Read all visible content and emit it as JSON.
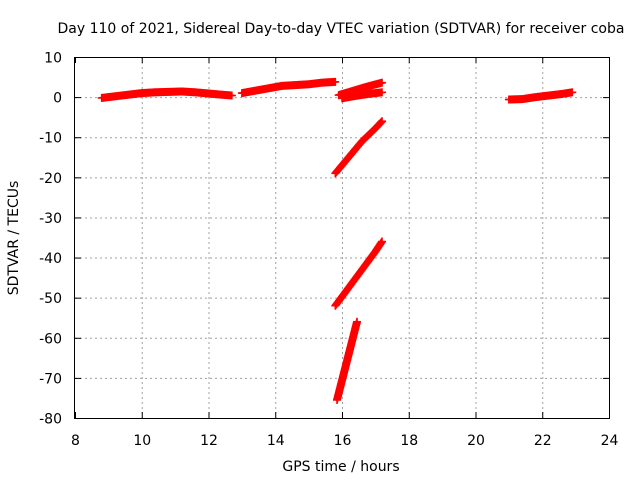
{
  "chart_data": {
    "type": "scatter",
    "title": "Day 110 of 2021, Sidereal Day-to-day VTEC variation (SDTVAR) for receiver coba",
    "xlabel": "GPS time / hours",
    "ylabel": "SDTVAR / TECUs",
    "xlim": [
      8,
      24
    ],
    "ylim": [
      -80,
      10
    ],
    "xticks": [
      "8",
      "10",
      "12",
      "14",
      "16",
      "18",
      "20",
      "22",
      "24"
    ],
    "yticks": [
      "10",
      "0",
      "-10",
      "-20",
      "-30",
      "-40",
      "-50",
      "-60",
      "-70",
      "-80"
    ],
    "grid": true,
    "marker": "plus",
    "color": "#ff0000",
    "series": [
      {
        "segments": [
          {
            "x": [
              8.8,
              9.2,
              9.6,
              10.0,
              10.4,
              10.8,
              11.2,
              11.6,
              12.0,
              12.4,
              12.7
            ],
            "y": [
              -0.2,
              0.2,
              0.6,
              1.0,
              1.2,
              1.3,
              1.4,
              1.2,
              0.9,
              0.6,
              0.4
            ]
          },
          {
            "x": [
              13.0,
              13.4,
              13.8,
              14.2,
              14.6,
              15.0,
              15.4,
              15.8
            ],
            "y": [
              1.0,
              1.6,
              2.2,
              2.8,
              3.0,
              3.2,
              3.6,
              3.8
            ]
          },
          {
            "x": [
              15.9,
              16.3,
              16.7,
              17.2
            ],
            "y": [
              0.5,
              1.5,
              2.5,
              3.6
            ]
          },
          {
            "x": [
              16.0,
              16.4,
              16.8,
              17.2
            ],
            "y": [
              -0.3,
              0.3,
              0.8,
              1.2
            ]
          },
          {
            "x": [
              15.8,
              16.2,
              16.6,
              17.0,
              17.2
            ],
            "y": [
              -19.0,
              -15.0,
              -11.0,
              -7.8,
              -6.0
            ]
          },
          {
            "x": [
              15.8,
              16.2,
              16.6,
              17.0,
              17.2
            ],
            "y": [
              -52.0,
              -47.5,
              -43.0,
              -38.5,
              -36.0
            ]
          },
          {
            "x": [
              15.85,
              16.05,
              16.25,
              16.45
            ],
            "y": [
              -75.5,
              -69.0,
              -62.5,
              -56.0
            ]
          },
          {
            "x": [
              21.0,
              21.4,
              21.8,
              22.2,
              22.6,
              22.9
            ],
            "y": [
              -0.6,
              -0.5,
              0.0,
              0.4,
              0.8,
              1.2
            ]
          }
        ]
      }
    ]
  }
}
